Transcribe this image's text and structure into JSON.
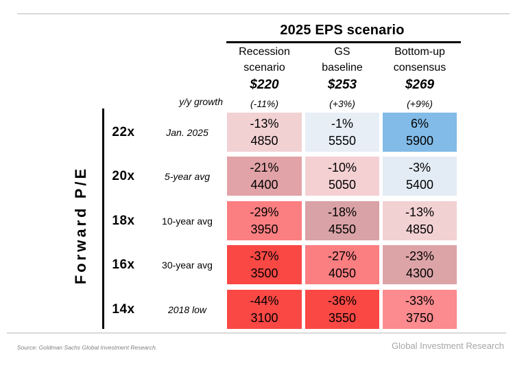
{
  "header": {
    "title": "2025 EPS scenario",
    "growth_label": "y/y growth",
    "columns": [
      {
        "line1": "Recession",
        "line2": "scenario",
        "eps": "$220",
        "growth": "(-11%)"
      },
      {
        "line1": "GS",
        "line2": "baseline",
        "eps": "$253",
        "growth": "(+3%)"
      },
      {
        "line1": "Bottom-up",
        "line2": "consensus",
        "eps": "$269",
        "growth": "(+9%)"
      }
    ]
  },
  "axis": {
    "label": "Forward P/E"
  },
  "rows": [
    {
      "pe": "22x",
      "sublabel": "Jan. 2025",
      "sublabel_style": "italic",
      "cells": [
        {
          "pct": "-13%",
          "level": "4850",
          "bg": "#f2d1d3"
        },
        {
          "pct": "-1%",
          "level": "5550",
          "bg": "#e8eef6"
        },
        {
          "pct": "6%",
          "level": "5900",
          "bg": "#82bbe7"
        }
      ]
    },
    {
      "pe": "20x",
      "sublabel": "5-year avg",
      "sublabel_style": "italic",
      "cells": [
        {
          "pct": "-21%",
          "level": "4400",
          "bg": "#e1a3a7"
        },
        {
          "pct": "-10%",
          "level": "5050",
          "bg": "#f4d0d3"
        },
        {
          "pct": "-3%",
          "level": "5400",
          "bg": "#e3ebf4"
        }
      ]
    },
    {
      "pe": "18x",
      "sublabel": "10-year avg",
      "sublabel_style": "normal",
      "cells": [
        {
          "pct": "-29%",
          "level": "3950",
          "bg": "#fb7e81"
        },
        {
          "pct": "-18%",
          "level": "4550",
          "bg": "#d9a2a6"
        },
        {
          "pct": "-13%",
          "level": "4850",
          "bg": "#f2d1d3"
        }
      ]
    },
    {
      "pe": "16x",
      "sublabel": "30-year avg",
      "sublabel_style": "normal",
      "cells": [
        {
          "pct": "-37%",
          "level": "3500",
          "bg": "#fa4845"
        },
        {
          "pct": "-27%",
          "level": "4050",
          "bg": "#fb7e81"
        },
        {
          "pct": "-23%",
          "level": "4300",
          "bg": "#dda4a8"
        }
      ]
    },
    {
      "pe": "14x",
      "sublabel": "2018 low",
      "sublabel_style": "italic",
      "cells": [
        {
          "pct": "-44%",
          "level": "3100",
          "bg": "#fa4845"
        },
        {
          "pct": "-36%",
          "level": "3550",
          "bg": "#fa4845"
        },
        {
          "pct": "-33%",
          "level": "3750",
          "bg": "#fb8b8e"
        }
      ]
    }
  ],
  "footer": {
    "source": "Source: Goldman Sachs Global Investment Research.",
    "brand": "Global Investment Research"
  },
  "colors": {
    "rule_gray": "#d9d9d9",
    "blue_positive": "#82bbe7",
    "red_severe": "#fa4845",
    "text": "#000000"
  },
  "chart_data": {
    "type": "heatmap",
    "title": "2025 EPS scenario",
    "row_axis_label": "Forward P/E",
    "rows": [
      "22x",
      "20x",
      "18x",
      "16x",
      "14x"
    ],
    "row_annotations": [
      "Jan. 2025",
      "5-year avg",
      "10-year avg",
      "30-year avg",
      "2018 low"
    ],
    "columns": [
      "Recession scenario $220 (-11%)",
      "GS baseline $253 (+3%)",
      "Bottom-up consensus $269 (+9%)"
    ],
    "column_note": "y/y growth",
    "pct_change": [
      [
        -13,
        -1,
        6
      ],
      [
        -21,
        -10,
        -3
      ],
      [
        -29,
        -18,
        -13
      ],
      [
        -37,
        -27,
        -23
      ],
      [
        -44,
        -36,
        -33
      ]
    ],
    "index_level": [
      [
        4850,
        5550,
        5900
      ],
      [
        4400,
        5050,
        5400
      ],
      [
        3950,
        4550,
        4850
      ],
      [
        3500,
        4050,
        4300
      ],
      [
        3100,
        3550,
        3750
      ]
    ],
    "legend_position": "none",
    "grid": false
  }
}
